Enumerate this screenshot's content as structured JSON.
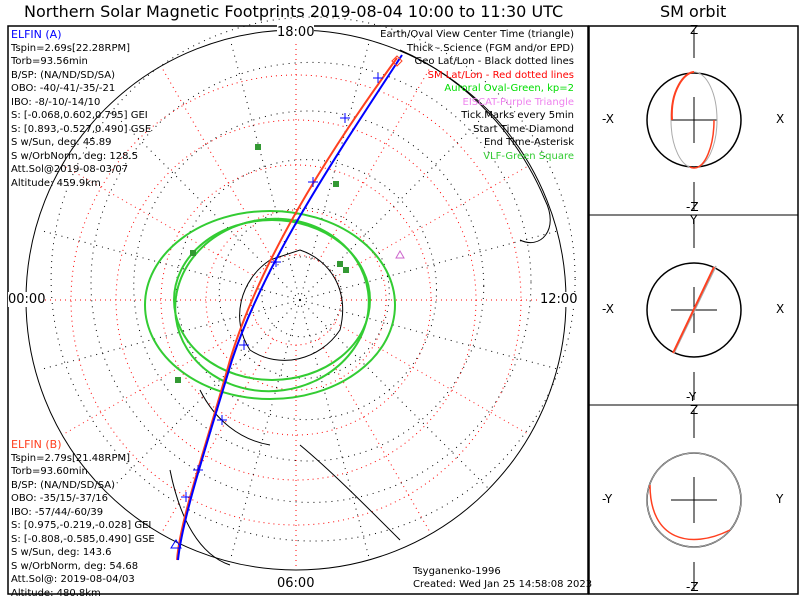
{
  "header": {
    "title": "Northern Solar Magnetic Footprints 2019-08-04 10:00 to 11:30 UTC",
    "orbit_title": "SM orbit"
  },
  "elfin_a": {
    "name": "ELFIN (A)",
    "color": "#0000ff",
    "lines": [
      "Tspin=2.69s[22.28RPM]",
      "Torb=93.56min",
      "B/SP: (NA/ND/SD/SA)",
      "OBO: -40/-41/-35/-21",
      "IBO: -8/-10/-14/10",
      "S: [-0.068,0.602,0.795] GEI",
      "S: [0.893,-0.527,0.490] GSE",
      "S w/Sun, deg: 45.89",
      "S w/OrbNorm, deg: 128.5",
      "Att.Sol@2019-08-03/07",
      "Altitude: 459.9km"
    ]
  },
  "elfin_b": {
    "name": "ELFIN (B)",
    "color": "#ff4020",
    "lines": [
      "Tspin=2.79s[21.48RPM]",
      "Torb=93.60min",
      "B/SP: (NA/ND/SD/SA)",
      "OBO: -35/15/-37/16",
      "IBO: -57/44/-60/39",
      "S: [0.975,-0.219,-0.028] GEI",
      "S: [-0.808,-0.585,0.490] GSE",
      "S w/Sun, deg: 143.6",
      "S w/OrbNorm, deg: 54.68",
      "Att.Sol@: 2019-08-04/03",
      "Altitude: 480.8km"
    ]
  },
  "legend": [
    {
      "text": "Earth/Oval View Center Time (triangle)",
      "color": "#000000"
    },
    {
      "text": "Thick - Science (FGM and/or EPD)",
      "color": "#000000"
    },
    {
      "text": "Geo Lat/Lon - Black dotted lines",
      "color": "#000000"
    },
    {
      "text": "SM Lat/Lon - Red dotted lines",
      "color": "#ff0000"
    },
    {
      "text": "Auroral Oval-Green, kp=2",
      "color": "#00dd00"
    },
    {
      "text": "EISCAT-Purple Triangle",
      "color": "#ee82ee"
    },
    {
      "text": "Tick Marks every 5min",
      "color": "#000000"
    },
    {
      "text": "Start Time-Diamond",
      "color": "#000000"
    },
    {
      "text": "End Time-Asterisk",
      "color": "#000000"
    },
    {
      "text": "VLF-Green Square",
      "color": "#33cc33"
    }
  ],
  "mlt_labels": {
    "top": "18:00",
    "left": "00:00",
    "right": "12:00",
    "bottom": "06:00"
  },
  "footer": {
    "model": "Tsyganenko-1996",
    "created": "Created: Wed Jan 25 14:58:08 2023"
  },
  "orbit_panels": [
    {
      "top": "Z",
      "bottom": "-Z",
      "left": "-X",
      "right": "X"
    },
    {
      "top": "Y",
      "bottom": "-Y",
      "left": "-X",
      "right": "X"
    },
    {
      "top": "Z",
      "bottom": "-Z",
      "left": "-Y",
      "right": "Y"
    }
  ]
}
